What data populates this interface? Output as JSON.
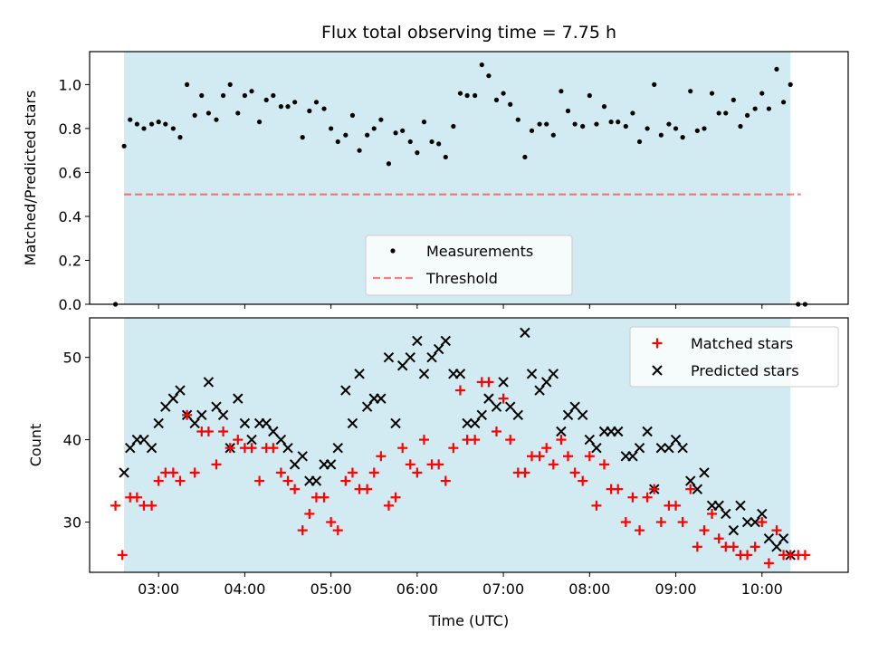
{
  "chart_data": {
    "title": "Flux total observing time = 7.75 h",
    "xlabel": "Time (UTC)",
    "x_ticks": [
      "03:00",
      "04:00",
      "05:00",
      "06:00",
      "07:00",
      "08:00",
      "09:00",
      "10:00"
    ],
    "x_tick_hours": [
      3,
      4,
      5,
      6,
      7,
      8,
      9,
      10
    ],
    "xlim_hours": [
      2.2,
      11.0
    ],
    "observing_window_hours": [
      2.6,
      10.33
    ],
    "colors": {
      "window": "#add8e6",
      "measurement": "#000000",
      "threshold": "#ff0000",
      "matched": "#ff0000",
      "predicted": "#000000"
    },
    "panels": [
      {
        "type": "scatter",
        "ylabel": "Matched/Predicted stars",
        "ylim": [
          0,
          1.15
        ],
        "y_ticks": [
          "0.0",
          "0.2",
          "0.4",
          "0.6",
          "0.8",
          "1.0"
        ],
        "y_tick_values": [
          0,
          0.2,
          0.4,
          0.6,
          0.8,
          1.0
        ],
        "legend_position": "lower-center",
        "threshold": {
          "name": "Threshold",
          "value": 0.5,
          "x_range_hours": [
            2.6,
            10.45
          ]
        },
        "series": [
          {
            "name": "Measurements",
            "x_hours": [
              2.5,
              2.6,
              2.67,
              2.75,
              2.83,
              2.92,
              3.0,
              3.08,
              3.17,
              3.25,
              3.33,
              3.42,
              3.5,
              3.58,
              3.67,
              3.75,
              3.83,
              3.92,
              4.0,
              4.08,
              4.17,
              4.25,
              4.33,
              4.42,
              4.5,
              4.58,
              4.67,
              4.75,
              4.83,
              4.92,
              5.0,
              5.08,
              5.17,
              5.25,
              5.33,
              5.42,
              5.5,
              5.58,
              5.67,
              5.75,
              5.83,
              5.92,
              6.0,
              6.08,
              6.17,
              6.25,
              6.33,
              6.42,
              6.5,
              6.58,
              6.67,
              6.75,
              6.83,
              6.92,
              7.0,
              7.08,
              7.17,
              7.25,
              7.33,
              7.42,
              7.5,
              7.58,
              7.67,
              7.75,
              7.83,
              7.92,
              8.0,
              8.08,
              8.17,
              8.25,
              8.33,
              8.42,
              8.5,
              8.58,
              8.67,
              8.75,
              8.83,
              8.92,
              9.0,
              9.08,
              9.17,
              9.25,
              9.33,
              9.42,
              9.5,
              9.58,
              9.67,
              9.75,
              9.83,
              9.92,
              10.0,
              10.08,
              10.17,
              10.25,
              10.33,
              10.42,
              10.5
            ],
            "y": [
              0.0,
              0.72,
              0.84,
              0.82,
              0.8,
              0.82,
              0.83,
              0.82,
              0.8,
              0.76,
              1.0,
              0.86,
              0.95,
              0.87,
              0.84,
              0.95,
              1.0,
              0.87,
              0.95,
              0.97,
              0.83,
              0.93,
              0.95,
              0.9,
              0.9,
              0.92,
              0.76,
              0.88,
              0.92,
              0.89,
              0.8,
              0.74,
              0.77,
              0.86,
              0.7,
              0.77,
              0.8,
              0.84,
              0.64,
              0.78,
              0.79,
              0.74,
              0.69,
              0.83,
              0.74,
              0.73,
              0.67,
              0.81,
              0.96,
              0.95,
              0.95,
              1.09,
              1.04,
              0.93,
              0.96,
              0.91,
              0.84,
              0.67,
              0.79,
              0.82,
              0.82,
              0.77,
              0.97,
              0.88,
              0.82,
              0.81,
              0.95,
              0.82,
              0.9,
              0.83,
              0.83,
              0.81,
              0.87,
              0.74,
              0.8,
              1.0,
              0.77,
              0.82,
              0.8,
              0.76,
              0.97,
              0.79,
              0.8,
              0.96,
              0.87,
              0.87,
              0.93,
              0.81,
              0.86,
              0.89,
              0.96,
              0.89,
              1.07,
              0.92,
              1.0,
              0.0,
              0.0
            ]
          }
        ]
      },
      {
        "type": "scatter",
        "ylabel": "Count",
        "ylim": [
          23.9,
          54.8
        ],
        "y_ticks": [
          "30",
          "40",
          "50"
        ],
        "y_tick_values": [
          30,
          40,
          50
        ],
        "legend_position": "top-right",
        "series": [
          {
            "name": "Matched stars",
            "x_hours": [
              2.5,
              2.58,
              2.67,
              2.75,
              2.83,
              2.92,
              3.0,
              3.08,
              3.17,
              3.25,
              3.33,
              3.42,
              3.5,
              3.58,
              3.67,
              3.75,
              3.83,
              3.92,
              4.0,
              4.08,
              4.17,
              4.25,
              4.33,
              4.42,
              4.5,
              4.58,
              4.67,
              4.75,
              4.83,
              4.92,
              5.0,
              5.08,
              5.17,
              5.25,
              5.33,
              5.42,
              5.5,
              5.58,
              5.67,
              5.75,
              5.83,
              5.92,
              6.0,
              6.08,
              6.17,
              6.25,
              6.33,
              6.42,
              6.5,
              6.58,
              6.67,
              6.75,
              6.83,
              6.92,
              7.0,
              7.08,
              7.17,
              7.25,
              7.33,
              7.42,
              7.5,
              7.58,
              7.67,
              7.75,
              7.83,
              7.92,
              8.0,
              8.08,
              8.17,
              8.25,
              8.33,
              8.42,
              8.5,
              8.58,
              8.67,
              8.75,
              8.83,
              8.92,
              9.0,
              9.08,
              9.17,
              9.25,
              9.33,
              9.42,
              9.5,
              9.58,
              9.67,
              9.75,
              9.83,
              9.92,
              10.0,
              10.08,
              10.17,
              10.25,
              10.33,
              10.42,
              10.5
            ],
            "y": [
              32,
              26,
              33,
              33,
              32,
              32,
              35,
              36,
              36,
              35,
              43,
              36,
              41,
              41,
              37,
              41,
              39,
              40,
              39,
              39,
              35,
              39,
              39,
              36,
              35,
              34,
              29,
              31,
              33,
              33,
              30,
              29,
              35,
              36,
              34,
              34,
              36,
              38,
              32,
              33,
              39,
              37,
              36,
              40,
              37,
              37,
              35,
              39,
              46,
              40,
              40,
              47,
              47,
              41,
              45,
              40,
              36,
              36,
              38,
              38,
              39,
              37,
              40,
              38,
              36,
              35,
              38,
              32,
              37,
              34,
              34,
              30,
              33,
              29,
              33,
              34,
              30,
              32,
              32,
              30,
              34,
              27,
              29,
              31,
              28,
              27,
              27,
              26,
              26,
              27,
              30,
              25,
              29,
              26,
              26,
              26,
              26
            ]
          },
          {
            "name": "Predicted stars",
            "x_hours": [
              2.6,
              2.67,
              2.75,
              2.83,
              2.92,
              3.0,
              3.08,
              3.17,
              3.25,
              3.33,
              3.42,
              3.5,
              3.58,
              3.67,
              3.75,
              3.83,
              3.92,
              4.0,
              4.08,
              4.17,
              4.25,
              4.33,
              4.42,
              4.5,
              4.58,
              4.67,
              4.75,
              4.83,
              4.92,
              5.0,
              5.08,
              5.17,
              5.25,
              5.33,
              5.42,
              5.5,
              5.58,
              5.67,
              5.75,
              5.83,
              5.92,
              6.0,
              6.08,
              6.17,
              6.25,
              6.33,
              6.42,
              6.5,
              6.58,
              6.67,
              6.75,
              6.83,
              6.92,
              7.0,
              7.08,
              7.17,
              7.25,
              7.33,
              7.42,
              7.5,
              7.58,
              7.67,
              7.75,
              7.83,
              7.92,
              8.0,
              8.08,
              8.17,
              8.25,
              8.33,
              8.42,
              8.5,
              8.58,
              8.67,
              8.75,
              8.83,
              8.92,
              9.0,
              9.08,
              9.17,
              9.25,
              9.33,
              9.42,
              9.5,
              9.58,
              9.67,
              9.75,
              9.83,
              9.92,
              10.0,
              10.08,
              10.17,
              10.25,
              10.33
            ],
            "y": [
              36,
              39,
              40,
              40,
              39,
              42,
              44,
              45,
              46,
              43,
              42,
              43,
              47,
              44,
              43,
              39,
              45,
              42,
              40,
              42,
              42,
              41,
              40,
              39,
              37,
              38,
              35,
              35,
              37,
              37,
              39,
              46,
              42,
              48,
              44,
              45,
              45,
              50,
              42,
              49,
              50,
              52,
              48,
              50,
              51,
              52,
              48,
              48,
              42,
              42,
              43,
              45,
              44,
              47,
              44,
              43,
              53,
              48,
              46,
              47,
              48,
              41,
              43,
              44,
              43,
              40,
              39,
              41,
              41,
              41,
              38,
              38,
              39,
              41,
              34,
              39,
              39,
              40,
              39,
              35,
              34,
              36,
              32,
              32,
              31,
              29,
              32,
              30,
              30,
              31,
              28,
              27,
              28,
              26
            ]
          }
        ]
      }
    ]
  }
}
